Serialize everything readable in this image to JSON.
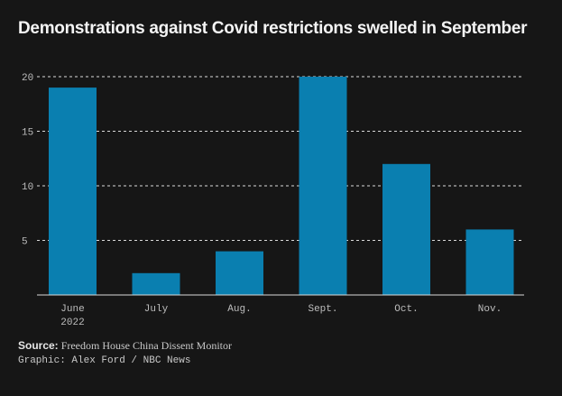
{
  "colors": {
    "background": "#161616",
    "bar": "#0a7fb0",
    "grid": "#d9d9d9",
    "text": "#f2f2f2",
    "muted": "#bdbdbd"
  },
  "title": "Demonstrations against Covid restrictions swelled in September",
  "source": {
    "label": "Source:",
    "text": "Freedom House China Dissent Monitor"
  },
  "credit": "Graphic: Alex Ford / NBC News",
  "chart_data": {
    "type": "bar",
    "title": "Demonstrations against Covid restrictions swelled in September",
    "categories": [
      "June\n2022",
      "July",
      "Aug.",
      "Sept.",
      "Oct.",
      "Nov."
    ],
    "values": [
      19,
      2,
      4,
      20,
      12,
      6
    ],
    "yticks": [
      5,
      10,
      15,
      20
    ],
    "ylim": [
      0,
      20
    ],
    "xlabel": "",
    "ylabel": "",
    "grid": "horizontal dashed",
    "legend": "none"
  }
}
